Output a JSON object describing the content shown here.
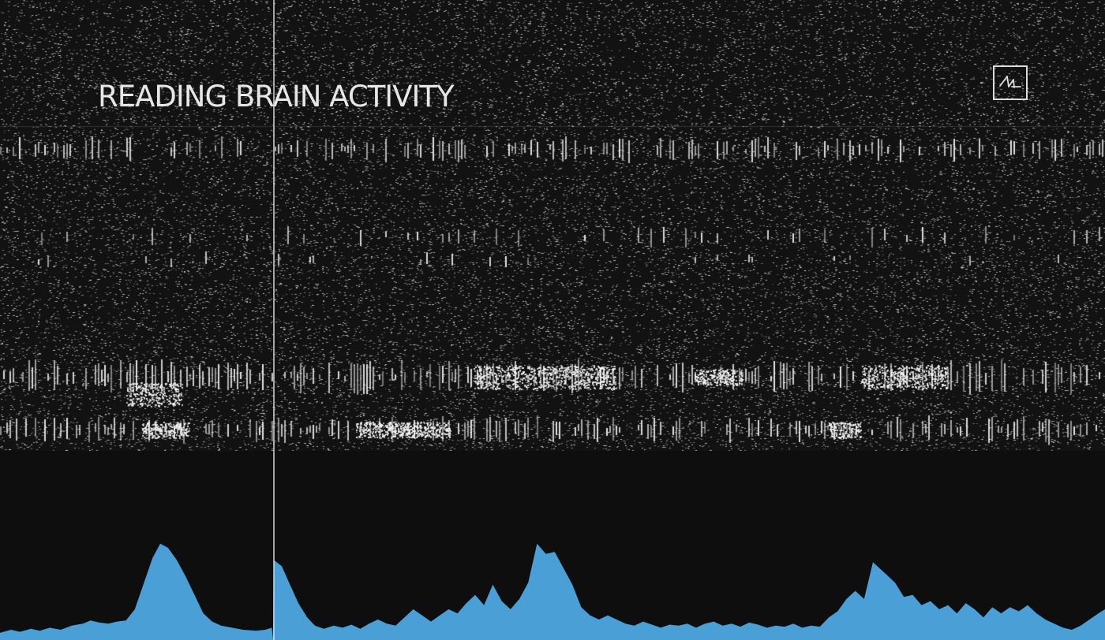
{
  "title": "READING BRAIN ACTIVITY",
  "logo": {
    "icon": "neuralink-waveform-logo-icon"
  },
  "colors": {
    "raster_background": "#121212",
    "spike_color": "#e8e8e8",
    "trace_background": "#0e0e0e",
    "trace_fill": "#4aa0d6",
    "cursor_color": "#d7d7d7"
  },
  "playhead": {
    "fraction": 0.247
  },
  "trace": {
    "points": [
      [
        0.0,
        0.07
      ],
      [
        0.01,
        0.1
      ],
      [
        0.018,
        0.08
      ],
      [
        0.028,
        0.11
      ],
      [
        0.036,
        0.09
      ],
      [
        0.045,
        0.12
      ],
      [
        0.055,
        0.1
      ],
      [
        0.065,
        0.14
      ],
      [
        0.075,
        0.16
      ],
      [
        0.082,
        0.19
      ],
      [
        0.09,
        0.17
      ],
      [
        0.098,
        0.16
      ],
      [
        0.106,
        0.18
      ],
      [
        0.114,
        0.19
      ],
      [
        0.122,
        0.3
      ],
      [
        0.13,
        0.55
      ],
      [
        0.138,
        0.8
      ],
      [
        0.145,
        0.94
      ],
      [
        0.152,
        0.9
      ],
      [
        0.16,
        0.78
      ],
      [
        0.168,
        0.62
      ],
      [
        0.176,
        0.44
      ],
      [
        0.184,
        0.26
      ],
      [
        0.192,
        0.18
      ],
      [
        0.2,
        0.14
      ],
      [
        0.21,
        0.12
      ],
      [
        0.22,
        0.1
      ],
      [
        0.232,
        0.09
      ],
      [
        0.24,
        0.1
      ],
      [
        0.246,
        0.12
      ],
      [
        0.247,
        0.01
      ],
      [
        0.248,
        0.78
      ],
      [
        0.255,
        0.72
      ],
      [
        0.262,
        0.55
      ],
      [
        0.27,
        0.36
      ],
      [
        0.278,
        0.22
      ],
      [
        0.285,
        0.14
      ],
      [
        0.293,
        0.11
      ],
      [
        0.302,
        0.14
      ],
      [
        0.31,
        0.12
      ],
      [
        0.318,
        0.15
      ],
      [
        0.326,
        0.11
      ],
      [
        0.334,
        0.16
      ],
      [
        0.342,
        0.2
      ],
      [
        0.35,
        0.16
      ],
      [
        0.358,
        0.14
      ],
      [
        0.366,
        0.22
      ],
      [
        0.374,
        0.3
      ],
      [
        0.382,
        0.24
      ],
      [
        0.39,
        0.18
      ],
      [
        0.398,
        0.24
      ],
      [
        0.406,
        0.3
      ],
      [
        0.414,
        0.26
      ],
      [
        0.422,
        0.36
      ],
      [
        0.43,
        0.44
      ],
      [
        0.438,
        0.34
      ],
      [
        0.446,
        0.54
      ],
      [
        0.454,
        0.38
      ],
      [
        0.462,
        0.3
      ],
      [
        0.47,
        0.4
      ],
      [
        0.478,
        0.56
      ],
      [
        0.486,
        0.94
      ],
      [
        0.494,
        0.84
      ],
      [
        0.502,
        0.86
      ],
      [
        0.51,
        0.7
      ],
      [
        0.518,
        0.54
      ],
      [
        0.526,
        0.32
      ],
      [
        0.534,
        0.24
      ],
      [
        0.542,
        0.2
      ],
      [
        0.55,
        0.24
      ],
      [
        0.558,
        0.2
      ],
      [
        0.566,
        0.16
      ],
      [
        0.574,
        0.14
      ],
      [
        0.582,
        0.18
      ],
      [
        0.59,
        0.15
      ],
      [
        0.598,
        0.12
      ],
      [
        0.606,
        0.15
      ],
      [
        0.614,
        0.14
      ],
      [
        0.622,
        0.16
      ],
      [
        0.63,
        0.12
      ],
      [
        0.638,
        0.16
      ],
      [
        0.646,
        0.18
      ],
      [
        0.654,
        0.14
      ],
      [
        0.662,
        0.16
      ],
      [
        0.67,
        0.13
      ],
      [
        0.678,
        0.17
      ],
      [
        0.686,
        0.15
      ],
      [
        0.694,
        0.12
      ],
      [
        0.702,
        0.14
      ],
      [
        0.71,
        0.13
      ],
      [
        0.718,
        0.16
      ],
      [
        0.726,
        0.12
      ],
      [
        0.734,
        0.14
      ],
      [
        0.742,
        0.13
      ],
      [
        0.75,
        0.22
      ],
      [
        0.758,
        0.28
      ],
      [
        0.766,
        0.4
      ],
      [
        0.774,
        0.48
      ],
      [
        0.782,
        0.4
      ],
      [
        0.79,
        0.76
      ],
      [
        0.796,
        0.7
      ],
      [
        0.802,
        0.64
      ],
      [
        0.81,
        0.56
      ],
      [
        0.818,
        0.42
      ],
      [
        0.826,
        0.44
      ],
      [
        0.834,
        0.34
      ],
      [
        0.842,
        0.38
      ],
      [
        0.85,
        0.3
      ],
      [
        0.858,
        0.34
      ],
      [
        0.866,
        0.26
      ],
      [
        0.874,
        0.36
      ],
      [
        0.882,
        0.3
      ],
      [
        0.89,
        0.22
      ],
      [
        0.898,
        0.32
      ],
      [
        0.906,
        0.26
      ],
      [
        0.914,
        0.32
      ],
      [
        0.922,
        0.28
      ],
      [
        0.93,
        0.34
      ],
      [
        0.938,
        0.26
      ],
      [
        0.946,
        0.2
      ],
      [
        0.954,
        0.16
      ],
      [
        0.962,
        0.12
      ],
      [
        0.97,
        0.1
      ],
      [
        0.978,
        0.14
      ],
      [
        0.986,
        0.2
      ],
      [
        0.994,
        0.26
      ],
      [
        1.0,
        0.3
      ]
    ]
  }
}
